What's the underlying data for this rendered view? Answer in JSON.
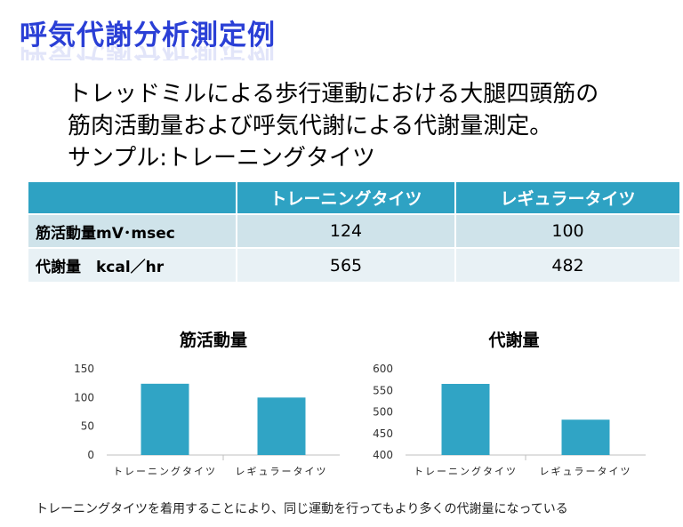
{
  "slide": {
    "title": "呼気代謝分析測定例",
    "description_lines": [
      "トレッドミルによる歩行運動における大腿四頭筋の",
      "筋肉活動量および呼気代謝による代謝量測定。",
      "サンプル:トレーニングタイツ"
    ],
    "footer": "トレーニングタイツを着用することにより、同じ運動を行ってもより多くの代謝量になっている"
  },
  "table": {
    "headers": [
      "",
      "トレーニングタイツ",
      "レギュラータイツ"
    ],
    "rows": [
      [
        "筋活動量mV･msec",
        "124",
        "100"
      ],
      [
        "代謝量　kcal／hr",
        "565",
        "482"
      ]
    ]
  },
  "colors": {
    "bar": "#30a4c5",
    "header": "#2ea2c3",
    "title": "#2a3fd6"
  },
  "chart_data": [
    {
      "type": "bar",
      "title": "筋活動量",
      "categories": [
        "トレーニングタイツ",
        "レギュラータイツ"
      ],
      "values": [
        124,
        100
      ],
      "ylim": [
        0,
        150
      ],
      "yticks": [
        0,
        50,
        100,
        150
      ],
      "grid": false,
      "legend": "none"
    },
    {
      "type": "bar",
      "title": "代謝量",
      "categories": [
        "トレーニングタイツ",
        "レギュラータイツ"
      ],
      "values": [
        565,
        482
      ],
      "ylim": [
        400,
        600
      ],
      "yticks": [
        400,
        450,
        500,
        550,
        600
      ],
      "grid": false,
      "legend": "none"
    }
  ]
}
